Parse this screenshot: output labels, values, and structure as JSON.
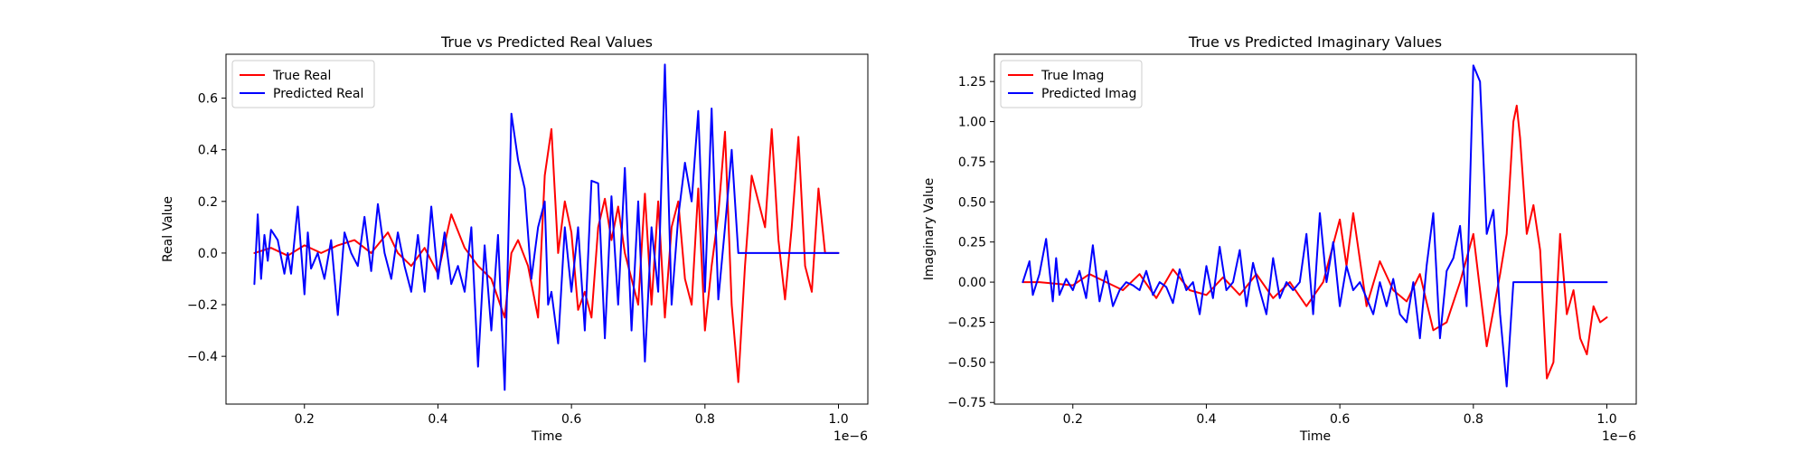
{
  "chart_data": [
    {
      "type": "line",
      "title": "True vs Predicted Real Values",
      "xlabel": "Time",
      "ylabel": "Real Value",
      "x_offset_text": "1e−6",
      "xlim": [
        0.0825,
        1.044
      ],
      "ylim": [
        -0.585,
        0.77
      ],
      "xticks": [
        0.2,
        0.4,
        0.6,
        0.8,
        1.0
      ],
      "xtick_labels": [
        "0.2",
        "0.4",
        "0.6",
        "0.8",
        "1.0"
      ],
      "yticks": [
        -0.4,
        -0.2,
        0.0,
        0.2,
        0.4,
        0.6
      ],
      "ytick_labels": [
        "−0.4",
        "−0.2",
        "0.0",
        "0.2",
        "0.4",
        "0.6"
      ],
      "grid": false,
      "legend_position": "upper-left",
      "series": [
        {
          "name": "True Real",
          "color": "#ff0000",
          "x": [
            0.125,
            0.15,
            0.175,
            0.2,
            0.225,
            0.25,
            0.275,
            0.3,
            0.325,
            0.34,
            0.36,
            0.38,
            0.4,
            0.42,
            0.44,
            0.46,
            0.48,
            0.5,
            0.51,
            0.52,
            0.535,
            0.55,
            0.56,
            0.57,
            0.58,
            0.59,
            0.6,
            0.61,
            0.62,
            0.63,
            0.64,
            0.65,
            0.66,
            0.67,
            0.68,
            0.69,
            0.7,
            0.71,
            0.72,
            0.73,
            0.74,
            0.75,
            0.76,
            0.77,
            0.78,
            0.79,
            0.8,
            0.81,
            0.82,
            0.83,
            0.84,
            0.85,
            0.86,
            0.87,
            0.88,
            0.89,
            0.9,
            0.91,
            0.92,
            0.93,
            0.94,
            0.95,
            0.96,
            0.97,
            0.98,
            0.99,
            1.0
          ],
          "y": [
            0.0,
            0.02,
            -0.01,
            0.03,
            0.0,
            0.03,
            0.05,
            0.0,
            0.08,
            0.0,
            -0.05,
            0.02,
            -0.08,
            0.15,
            0.02,
            -0.05,
            -0.1,
            -0.25,
            0.0,
            0.05,
            -0.05,
            -0.25,
            0.3,
            0.48,
            0.0,
            0.2,
            0.08,
            -0.22,
            -0.15,
            -0.25,
            0.1,
            0.21,
            0.05,
            0.18,
            0.0,
            -0.1,
            -0.2,
            0.23,
            -0.2,
            0.2,
            -0.25,
            0.1,
            0.2,
            -0.1,
            -0.2,
            0.25,
            -0.3,
            -0.05,
            0.15,
            0.47,
            -0.2,
            -0.5,
            -0.05,
            0.3,
            0.2,
            0.1,
            0.48,
            0.05,
            -0.18,
            0.1,
            0.45,
            -0.05,
            -0.15,
            0.25,
            0.0,
            0.0,
            0.0
          ],
          "_note_ignore": null
        },
        {
          "name": "Predicted Real",
          "color": "#0000ff",
          "x": [
            0.125,
            0.13,
            0.135,
            0.14,
            0.145,
            0.15,
            0.16,
            0.17,
            0.175,
            0.18,
            0.19,
            0.2,
            0.205,
            0.21,
            0.22,
            0.23,
            0.24,
            0.25,
            0.26,
            0.27,
            0.28,
            0.29,
            0.3,
            0.31,
            0.32,
            0.33,
            0.34,
            0.35,
            0.36,
            0.37,
            0.38,
            0.39,
            0.4,
            0.41,
            0.42,
            0.43,
            0.44,
            0.45,
            0.46,
            0.47,
            0.48,
            0.49,
            0.5,
            0.51,
            0.52,
            0.53,
            0.54,
            0.55,
            0.56,
            0.565,
            0.57,
            0.58,
            0.59,
            0.6,
            0.61,
            0.62,
            0.63,
            0.64,
            0.65,
            0.66,
            0.67,
            0.68,
            0.69,
            0.7,
            0.71,
            0.72,
            0.73,
            0.74,
            0.75,
            0.76,
            0.77,
            0.78,
            0.79,
            0.8,
            0.81,
            0.82,
            0.83,
            0.84,
            0.85,
            0.86,
            0.865,
            0.87,
            0.88,
            0.89,
            0.9,
            0.91,
            0.92,
            0.93,
            0.94,
            0.95,
            0.96,
            0.97,
            0.98,
            0.99,
            1.0
          ],
          "y": [
            -0.12,
            0.15,
            -0.1,
            0.07,
            -0.03,
            0.09,
            0.05,
            -0.08,
            0.0,
            -0.08,
            0.18,
            -0.16,
            0.08,
            -0.06,
            0.0,
            -0.1,
            0.05,
            -0.24,
            0.08,
            0.0,
            -0.05,
            0.14,
            -0.07,
            0.19,
            0.0,
            -0.1,
            0.08,
            -0.05,
            -0.15,
            0.07,
            -0.15,
            0.18,
            -0.1,
            0.08,
            -0.12,
            -0.05,
            -0.15,
            0.1,
            -0.44,
            0.03,
            -0.3,
            0.07,
            -0.53,
            0.54,
            0.36,
            0.25,
            -0.1,
            0.1,
            0.2,
            -0.2,
            -0.15,
            -0.35,
            0.1,
            -0.15,
            0.1,
            -0.3,
            0.28,
            0.27,
            -0.33,
            0.22,
            -0.2,
            0.33,
            -0.3,
            0.2,
            -0.42,
            0.1,
            -0.15,
            0.73,
            -0.2,
            0.14,
            0.35,
            0.2,
            0.55,
            -0.15,
            0.56,
            -0.18,
            0.1,
            0.4,
            0.0,
            0.0,
            0.0,
            0.0,
            0.0,
            0.0,
            0.0,
            0.0,
            0.0,
            0.0,
            0.0,
            0.0,
            0.0,
            0.0,
            0.0,
            0.0,
            0.0
          ]
        }
      ]
    },
    {
      "type": "line",
      "title": "True vs Predicted Imaginary Values",
      "xlabel": "Time",
      "ylabel": "Imaginary Value",
      "x_offset_text": "1e−6",
      "xlim": [
        0.0825,
        1.044
      ],
      "ylim": [
        -0.76,
        1.42
      ],
      "xticks": [
        0.2,
        0.4,
        0.6,
        0.8,
        1.0
      ],
      "xtick_labels": [
        "0.2",
        "0.4",
        "0.6",
        "0.8",
        "1.0"
      ],
      "yticks": [
        -0.75,
        -0.5,
        -0.25,
        0.0,
        0.25,
        0.5,
        0.75,
        1.0,
        1.25
      ],
      "ytick_labels": [
        "−0.75",
        "−0.50",
        "−0.25",
        "0.00",
        "0.25",
        "0.50",
        "0.75",
        "1.00",
        "1.25"
      ],
      "grid": false,
      "legend_position": "upper-left",
      "series": [
        {
          "name": "True Imag",
          "color": "#ff0000",
          "x": [
            0.125,
            0.15,
            0.175,
            0.2,
            0.225,
            0.25,
            0.275,
            0.3,
            0.325,
            0.35,
            0.375,
            0.4,
            0.425,
            0.45,
            0.475,
            0.5,
            0.525,
            0.55,
            0.575,
            0.6,
            0.61,
            0.62,
            0.64,
            0.66,
            0.68,
            0.7,
            0.72,
            0.74,
            0.76,
            0.78,
            0.8,
            0.82,
            0.84,
            0.85,
            0.86,
            0.865,
            0.87,
            0.88,
            0.89,
            0.9,
            0.91,
            0.92,
            0.93,
            0.94,
            0.95,
            0.96,
            0.97,
            0.98,
            0.99,
            1.0
          ],
          "y": [
            0.0,
            0.0,
            -0.01,
            -0.02,
            0.05,
            0.0,
            -0.05,
            0.05,
            -0.1,
            0.08,
            -0.05,
            -0.08,
            0.03,
            -0.08,
            0.05,
            -0.1,
            0.0,
            -0.15,
            0.0,
            0.39,
            0.1,
            0.43,
            -0.15,
            0.13,
            -0.05,
            -0.12,
            0.05,
            -0.3,
            -0.25,
            0.0,
            0.3,
            -0.4,
            0.05,
            0.3,
            1.0,
            1.1,
            0.9,
            0.3,
            0.48,
            0.2,
            -0.6,
            -0.5,
            0.3,
            -0.2,
            -0.05,
            -0.35,
            -0.45,
            -0.15,
            -0.25,
            -0.22
          ]
        },
        {
          "name": "Predicted Imag",
          "color": "#0000ff",
          "x": [
            0.125,
            0.135,
            0.14,
            0.15,
            0.16,
            0.17,
            0.175,
            0.18,
            0.19,
            0.2,
            0.21,
            0.22,
            0.23,
            0.24,
            0.25,
            0.26,
            0.27,
            0.28,
            0.29,
            0.3,
            0.31,
            0.32,
            0.33,
            0.34,
            0.35,
            0.36,
            0.37,
            0.38,
            0.39,
            0.4,
            0.41,
            0.42,
            0.43,
            0.44,
            0.45,
            0.46,
            0.47,
            0.48,
            0.49,
            0.5,
            0.51,
            0.52,
            0.53,
            0.54,
            0.55,
            0.56,
            0.57,
            0.58,
            0.59,
            0.6,
            0.61,
            0.62,
            0.63,
            0.64,
            0.65,
            0.66,
            0.67,
            0.68,
            0.69,
            0.7,
            0.71,
            0.72,
            0.73,
            0.74,
            0.75,
            0.76,
            0.77,
            0.78,
            0.79,
            0.8,
            0.81,
            0.82,
            0.83,
            0.84,
            0.85,
            0.86,
            0.865,
            0.87,
            0.88,
            0.89,
            0.9,
            0.91,
            0.92,
            0.93,
            0.94,
            0.95,
            0.96,
            0.97,
            0.98,
            0.99,
            1.0
          ],
          "y": [
            0.0,
            0.13,
            -0.08,
            0.05,
            0.27,
            -0.12,
            0.15,
            -0.08,
            0.02,
            -0.05,
            0.07,
            -0.1,
            0.23,
            -0.12,
            0.07,
            -0.15,
            -0.05,
            0.0,
            -0.02,
            -0.05,
            0.07,
            -0.08,
            0.0,
            -0.03,
            -0.13,
            0.08,
            -0.05,
            0.0,
            -0.2,
            0.1,
            -0.1,
            0.22,
            -0.05,
            0.0,
            0.2,
            -0.15,
            0.12,
            -0.05,
            -0.2,
            0.15,
            -0.1,
            0.0,
            -0.05,
            0.0,
            0.3,
            -0.2,
            0.43,
            0.0,
            0.25,
            -0.15,
            0.1,
            -0.05,
            0.0,
            -0.1,
            -0.2,
            0.0,
            -0.15,
            0.02,
            -0.2,
            -0.25,
            0.0,
            -0.35,
            0.1,
            0.43,
            -0.35,
            0.07,
            0.15,
            0.35,
            -0.15,
            1.35,
            1.25,
            0.3,
            0.45,
            -0.2,
            -0.65,
            0.0,
            0.0,
            0.0,
            0.0,
            0.0,
            0.0,
            0.0,
            0.0,
            0.0,
            0.0,
            0.0,
            0.0,
            0.0,
            0.0,
            0.0,
            0.0
          ]
        }
      ]
    }
  ]
}
